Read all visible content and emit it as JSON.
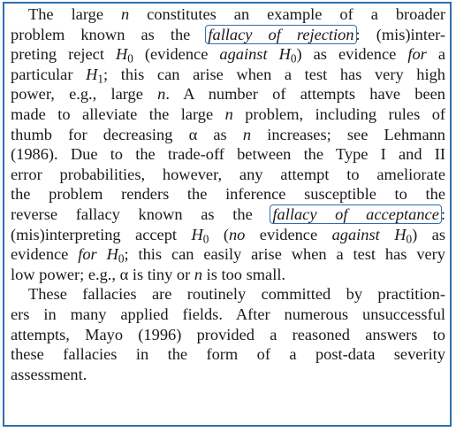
{
  "paragraph1": {
    "l1a": "The large ",
    "l1b": "n",
    "l1c": " constitutes an example of a broader",
    "l2a": "problem known as the ",
    "l2b": "fallacy of rejection",
    "l2c": ": (mis)inter-",
    "l3a": "preting reject ",
    "l3b": "H",
    "l3c": "0",
    "l3d": " (evidence ",
    "l3e": "against H",
    "l3f": "0",
    "l3g": ") as evidence ",
    "l3h": "for",
    "l3i": " a",
    "l4a": "particular ",
    "l4b": "H",
    "l4c": "1",
    "l4d": "; this can arise when a test has very high",
    "l5a": "power, e.g., large ",
    "l5b": "n",
    "l5c": ". A number of attempts have been",
    "l6a": "made to alleviate the large ",
    "l6b": "n",
    "l6c": " problem, including rules of",
    "l7a": "thumb for decreasing α as ",
    "l7b": "n",
    "l7c": " increases; see Lehmann",
    "l8": "(1986). Due to the trade-off between the Type I and II",
    "l9": "error probabilities, however, any attempt to ameliorate",
    "l10": "the problem renders the inference susceptible to the",
    "l11a": "reverse fallacy known as the ",
    "l11b": "fallacy of acceptance",
    "l11c": ":",
    "l12a": "(mis)interpreting accept ",
    "l12b": "H",
    "l12c": "0",
    "l12d": " (",
    "l12e": "no",
    "l12f": " evidence ",
    "l12g": "against H",
    "l12h": "0",
    "l12i": ") as",
    "l13a": "evidence ",
    "l13b": "for H",
    "l13c": "0",
    "l13d": "; this can easily arise when a test has very",
    "l14a": "low power; e.g., α is tiny or ",
    "l14b": "n",
    "l14c": " is too small."
  },
  "paragraph2": {
    "l1": "These fallacies are routinely committed by practition-",
    "l2": "ers in many applied fields. After numerous unsuccessful",
    "l3": "attempts, Mayo (1996) provided a reasoned answers to",
    "l4": "these fallacies in the form of a post-data severity",
    "l5": "assessment."
  },
  "colors": {
    "frame": "#2f6fb0",
    "highlight_box": "#2f6fb0",
    "text": "#1a1a1a"
  }
}
